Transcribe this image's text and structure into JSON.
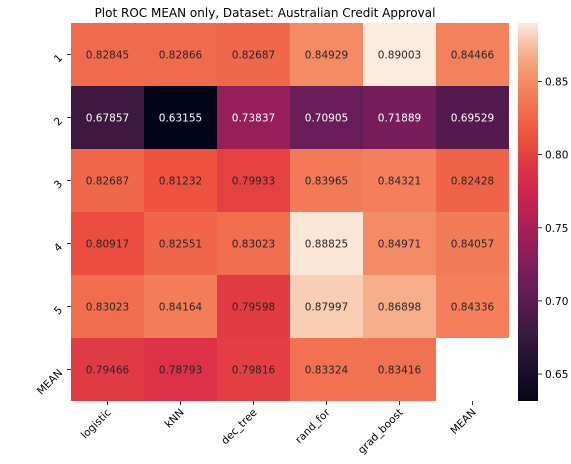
{
  "chart_data": {
    "type": "heatmap",
    "title": "Plot ROC MEAN only, Dataset: Australian Credit Approval",
    "x_labels": [
      "logistic",
      "kNN",
      "dec_tree",
      "rand_for",
      "grad_boost",
      "MEAN"
    ],
    "y_labels": [
      "1",
      "2",
      "3",
      "4",
      "5",
      "MEAN"
    ],
    "values": [
      [
        0.82845,
        0.82866,
        0.82687,
        0.84929,
        0.89003,
        0.84466
      ],
      [
        0.67857,
        0.63155,
        0.73837,
        0.70905,
        0.71889,
        0.69529
      ],
      [
        0.82687,
        0.81232,
        0.79933,
        0.83965,
        0.84321,
        0.82428
      ],
      [
        0.80917,
        0.82551,
        0.83023,
        0.88825,
        0.84971,
        0.84057
      ],
      [
        0.83023,
        0.84164,
        0.79598,
        0.87997,
        0.86898,
        0.84336
      ],
      [
        0.79466,
        0.78793,
        0.79816,
        0.83324,
        0.83416,
        null
      ]
    ],
    "value_labels": [
      [
        "0.82845",
        "0.82866",
        "0.82687",
        "0.84929",
        "0.89003",
        "0.84466"
      ],
      [
        "0.67857",
        "0.63155",
        "0.73837",
        "0.70905",
        "0.71889",
        "0.69529"
      ],
      [
        "0.82687",
        "0.81232",
        "0.79933",
        "0.83965",
        "0.84321",
        "0.82428"
      ],
      [
        "0.80917",
        "0.82551",
        "0.83023",
        "0.88825",
        "0.84971",
        "0.84057"
      ],
      [
        "0.83023",
        "0.84164",
        "0.79598",
        "0.87997",
        "0.86898",
        "0.84336"
      ],
      [
        "0.79466",
        "0.78793",
        "0.79816",
        "0.83324",
        "0.83416",
        ""
      ]
    ],
    "colormap": "rocket",
    "colorbar": {
      "vmin": 0.63155,
      "vmax": 0.89003,
      "ticks": [
        0.65,
        0.7,
        0.75,
        0.8,
        0.85
      ],
      "tick_labels": [
        "0.65",
        "0.70",
        "0.75",
        "0.80",
        "0.85"
      ],
      "placement": "right"
    }
  }
}
